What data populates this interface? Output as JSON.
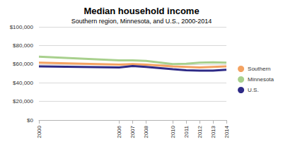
{
  "chart_data": {
    "type": "line",
    "title": "Median household income",
    "subtitle": "Southern region, Minnesota, and U.S., 2000-2014",
    "x": [
      2000,
      2006,
      2007,
      2008,
      2010,
      2011,
      2012,
      2013,
      2014
    ],
    "series": [
      {
        "name": "Southern",
        "color": "#f4a261",
        "values": [
          61500,
          59500,
          60000,
          59500,
          57500,
          57000,
          56500,
          57000,
          57500
        ]
      },
      {
        "name": "Minnesota",
        "color": "#a8d08d",
        "values": [
          68000,
          64000,
          64000,
          63500,
          60000,
          60500,
          61500,
          62000,
          61500
        ]
      },
      {
        "name": "U.S.",
        "color": "#2e2a86",
        "values": [
          57500,
          56500,
          58000,
          57000,
          54500,
          53500,
          53000,
          53000,
          54000
        ]
      }
    ],
    "xlim": [
      2000,
      2014
    ],
    "xticks": [
      2000,
      2006,
      2007,
      2008,
      2010,
      2011,
      2012,
      2013,
      2014
    ],
    "ylim": [
      0,
      100000
    ],
    "yticks": [
      {
        "value": 0,
        "label": "$0"
      },
      {
        "value": 20000,
        "label": "$20,000"
      },
      {
        "value": 40000,
        "label": "$40,000"
      },
      {
        "value": 60000,
        "label": "$60,000"
      },
      {
        "value": 80000,
        "label": "$80,000"
      },
      {
        "value": 100000,
        "label": "$100,000"
      }
    ],
    "grid": true,
    "legend": "right"
  }
}
